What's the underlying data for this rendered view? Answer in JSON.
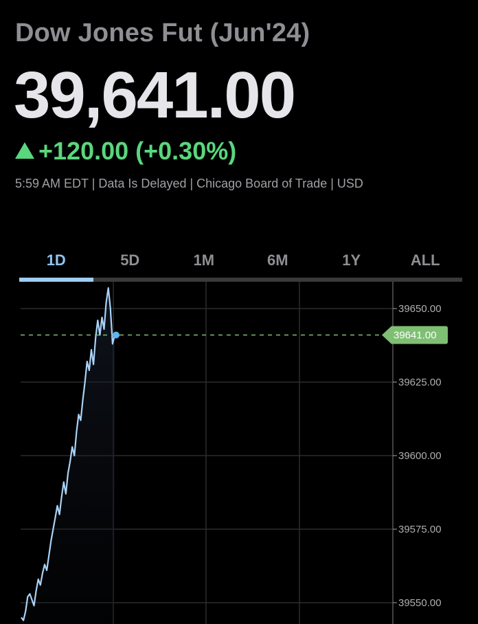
{
  "quote": {
    "name": "Dow Jones Fut (Jun'24)",
    "price": "39,641.00",
    "change": "+120.00 (+0.30%)",
    "meta": "5:59 AM EDT | Data Is Delayed | Chicago Board of Trade | USD"
  },
  "tabs": [
    {
      "label": "1D",
      "active": true
    },
    {
      "label": "5D",
      "active": false
    },
    {
      "label": "1M",
      "active": false
    },
    {
      "label": "6M",
      "active": false
    },
    {
      "label": "1Y",
      "active": false
    },
    {
      "label": "ALL",
      "active": false
    }
  ],
  "colors": {
    "up": "#5ad67d",
    "line": "#a9d3f8",
    "accent_tab": "#8ec5f3",
    "marker": "#7fbf73",
    "dot": "#5fb3f0"
  },
  "chart_data": {
    "type": "line",
    "range": "1D",
    "current_value": 39641.0,
    "current_label": "39641.00",
    "y_ticks": [
      "39650.00",
      "39625.00",
      "39600.00",
      "39575.00",
      "39550.00"
    ],
    "ylim": [
      39544,
      39659
    ],
    "grid": true,
    "series": [
      {
        "values": [
          39545,
          39544,
          39547,
          39552,
          39553,
          39551,
          39549,
          39554,
          39558,
          39556,
          39560,
          39563,
          39561,
          39566,
          39571,
          39575,
          39579,
          39583,
          39580,
          39586,
          39591,
          39587,
          39594,
          39598,
          39603,
          39600,
          39608,
          39614,
          39612,
          39619,
          39625,
          39632,
          39629,
          39636,
          39631,
          39640,
          39646,
          39641,
          39647,
          39643,
          39652,
          39657,
          39650,
          39638,
          39641
        ]
      }
    ]
  }
}
